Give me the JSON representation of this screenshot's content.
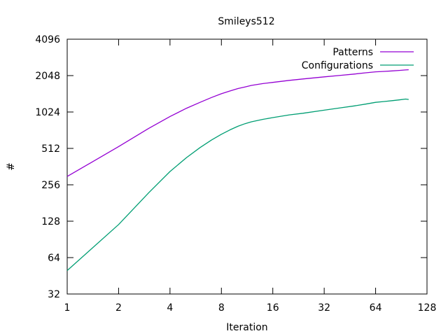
{
  "chart_data": {
    "type": "line",
    "title": "Smileys512",
    "xlabel": "Iteration",
    "ylabel": "#",
    "x_scale": "log2",
    "y_scale": "log2",
    "xlim": [
      1,
      128
    ],
    "ylim": [
      32,
      4096
    ],
    "x_ticks": [
      "1",
      "2",
      "4",
      "8",
      "16",
      "32",
      "64",
      "128"
    ],
    "y_ticks": [
      "32",
      "64",
      "128",
      "256",
      "512",
      "1024",
      "2048",
      "4096"
    ],
    "grid": false,
    "legend_position": "top-right",
    "series": [
      {
        "name": "Patterns",
        "color": "#9400d3",
        "x": [
          1,
          2,
          3,
          4,
          5,
          6,
          7,
          8,
          9,
          10,
          11,
          12,
          14,
          16,
          20,
          24,
          32,
          40,
          48,
          56,
          64,
          72,
          80,
          88,
          96,
          100
        ],
        "y": [
          300,
          530,
          750,
          940,
          1100,
          1230,
          1350,
          1450,
          1530,
          1600,
          1650,
          1700,
          1760,
          1800,
          1870,
          1920,
          2000,
          2060,
          2110,
          2160,
          2200,
          2220,
          2240,
          2260,
          2280,
          2290
        ]
      },
      {
        "name": "Configurations",
        "color": "#009e73",
        "x": [
          1,
          2,
          3,
          4,
          5,
          6,
          7,
          8,
          9,
          10,
          11,
          12,
          14,
          16,
          20,
          24,
          32,
          40,
          48,
          56,
          64,
          72,
          80,
          88,
          96,
          100
        ],
        "y": [
          50,
          120,
          220,
          330,
          430,
          520,
          600,
          670,
          730,
          780,
          820,
          850,
          890,
          920,
          970,
          1000,
          1060,
          1110,
          1150,
          1190,
          1230,
          1250,
          1270,
          1290,
          1310,
          1300
        ]
      }
    ]
  }
}
